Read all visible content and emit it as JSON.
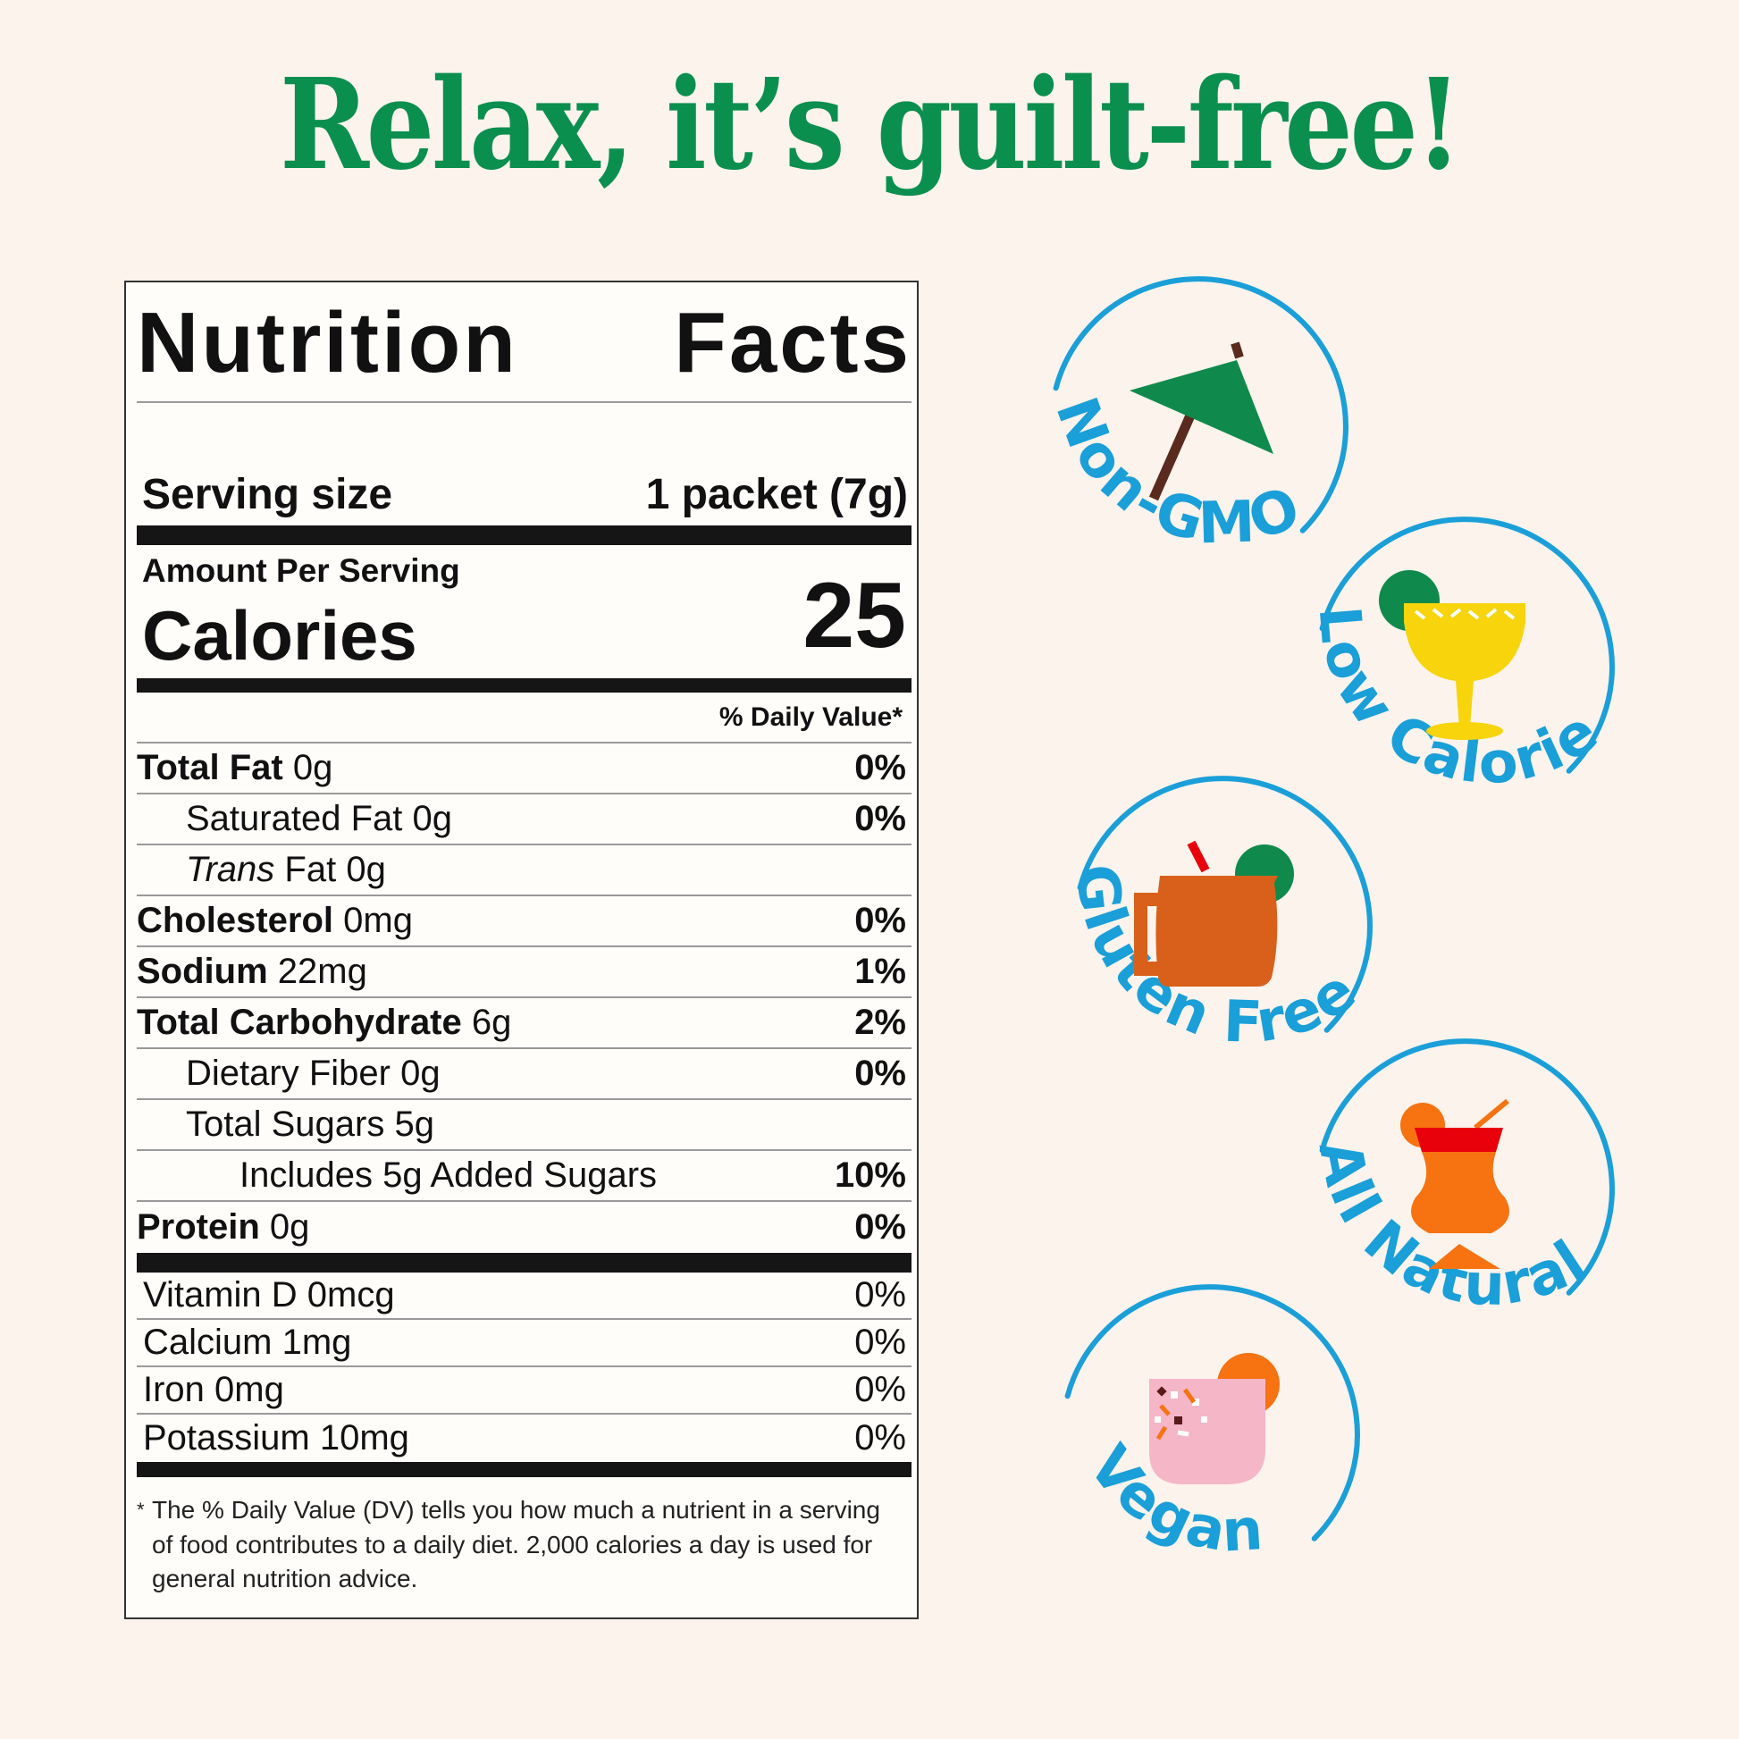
{
  "title": "Relax, it’s guilt-free!",
  "nutrition": {
    "heading_word1": "Nutrition",
    "heading_word2": "Facts",
    "serving_label": "Serving size",
    "serving_value": "1 packet (7g)",
    "amount_per_serving": "Amount Per Serving",
    "calories_label": "Calories",
    "calories_value": "25",
    "dv_header": "% Daily Value*",
    "nutrients": [
      {
        "name": "Total Fat",
        "amount": "0g",
        "dv": "0%",
        "bold": true,
        "indent": 0
      },
      {
        "name": "Saturated Fat",
        "amount": "0g",
        "dv": "0%",
        "bold": false,
        "indent": 1
      },
      {
        "italic": "Trans",
        "name": "Fat",
        "amount": "0g",
        "dv": "",
        "bold": false,
        "indent": 1
      },
      {
        "name": "Cholesterol",
        "amount": "0mg",
        "dv": "0%",
        "bold": true,
        "indent": 0
      },
      {
        "name": "Sodium",
        "amount": "22mg",
        "dv": "1%",
        "bold": true,
        "indent": 0
      },
      {
        "name": "Total Carbohydrate",
        "amount": "6g",
        "dv": "2%",
        "bold": true,
        "indent": 0
      },
      {
        "name": "Dietary Fiber",
        "amount": "0g",
        "dv": "0%",
        "bold": false,
        "indent": 1
      },
      {
        "name": "Total Sugars",
        "amount": "5g",
        "dv": "",
        "bold": false,
        "indent": 1
      },
      {
        "name": "Includes 5g Added Sugars",
        "amount": "",
        "dv": "10%",
        "bold": false,
        "indent": 2
      },
      {
        "name": "Protein",
        "amount": "0g",
        "dv": "0%",
        "bold": true,
        "indent": 0
      }
    ],
    "vitamins": [
      {
        "label": "Vitamin D 0mcg",
        "dv": "0%"
      },
      {
        "label": "Calcium 1mg",
        "dv": "0%"
      },
      {
        "label": "Iron 0mg",
        "dv": "0%"
      },
      {
        "label": "Potassium 10mg",
        "dv": "0%"
      }
    ],
    "footnote_star": "*",
    "footnote": "The % Daily Value (DV) tells you how much a nutrient in a serving of food contributes to a daily diet. 2,000 calories a day is used for general nutrition advice."
  },
  "badges": [
    {
      "label": "Non-GMO",
      "icon": "cocktail-umbrella-icon"
    },
    {
      "label": "Low Calorie",
      "icon": "margarita-glass-icon"
    },
    {
      "label": "Gluten Free",
      "icon": "copper-mug-icon"
    },
    {
      "label": "All Natural",
      "icon": "hurricane-glass-icon"
    },
    {
      "label": "Vegan",
      "icon": "pink-cocktail-icon"
    }
  ],
  "colors": {
    "background": "#fcf3ec",
    "title_green": "#0b8f4f",
    "badge_blue": "#1a9fd8",
    "label_black": "#151515"
  }
}
